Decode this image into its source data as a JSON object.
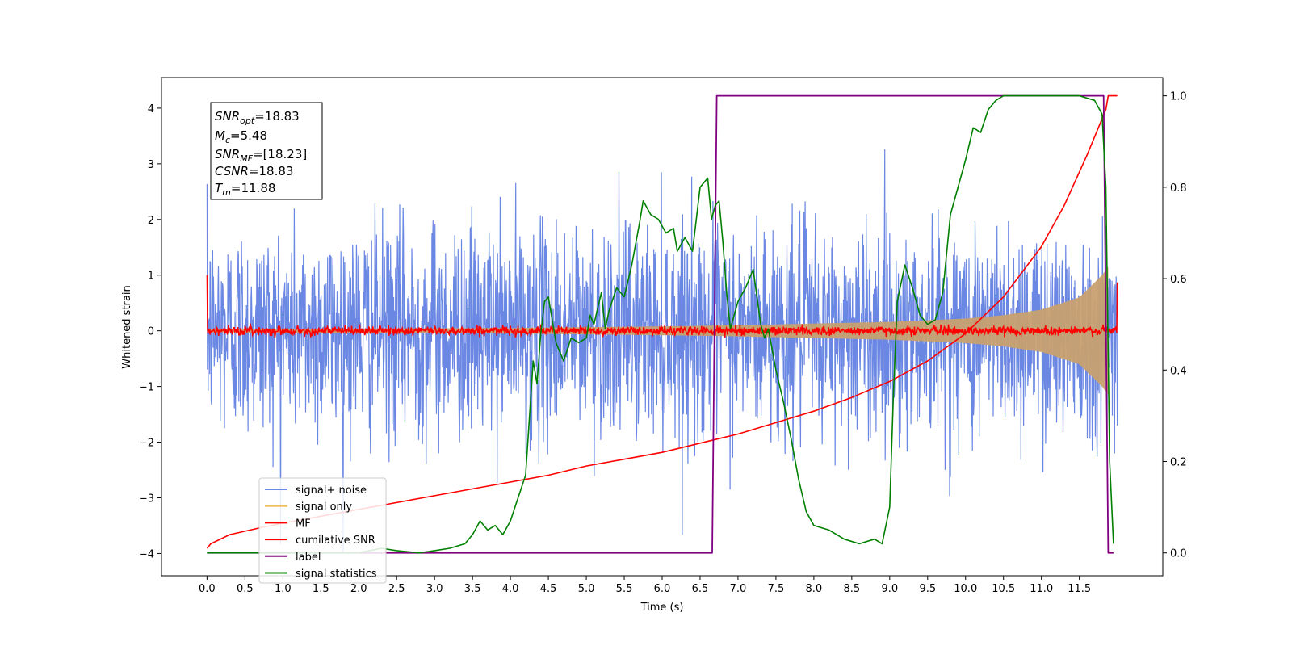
{
  "chart_data": {
    "type": "line",
    "title": "",
    "xlabel": "Time (s)",
    "ylabel": "Whitened strain",
    "xlim": [
      -0.6,
      12.6
    ],
    "ylim": [
      -4.4,
      4.55
    ],
    "ylim_right": [
      -0.05,
      1.04
    ],
    "x_ticks": [
      "0.0",
      "0.5",
      "1.0",
      "1.5",
      "2.0",
      "2.5",
      "3.0",
      "3.5",
      "4.0",
      "4.5",
      "5.0",
      "5.5",
      "6.0",
      "6.5",
      "7.0",
      "7.5",
      "8.0",
      "8.5",
      "9.0",
      "9.5",
      "10.0",
      "10.5",
      "11.0",
      "11.5"
    ],
    "y_ticks": [
      "4",
      "3",
      "2",
      "1",
      "0",
      "−1",
      "−2",
      "−3",
      "−4"
    ],
    "y_ticks_right": [
      "1.0",
      "0.8",
      "0.6",
      "0.4",
      "0.2",
      "0.0"
    ],
    "info_box": {
      "snr_opt": {
        "main": "SNR",
        "sub": "opt",
        "value": "=18.83"
      },
      "mc": {
        "main": "M",
        "sub": "c",
        "value": "=5.48"
      },
      "snr_mf": {
        "main": "SNR",
        "sub": "MF",
        "value": "=[18.23]"
      },
      "csnr": {
        "main": "CSNR",
        "value": "=18.83"
      },
      "tm": {
        "main": "T",
        "sub": "m",
        "value": "=11.88"
      }
    },
    "duration": 12.0,
    "merger_time": 11.88,
    "series": [
      {
        "name": "signal+ noise",
        "color": "#6a87e3",
        "axis": "left",
        "kind": "noise",
        "sigma": 0.95,
        "max_abs": 4.1
      },
      {
        "name": "signal only",
        "color": "#f0c060",
        "axis": "left",
        "kind": "chirp_envelope",
        "env": [
          [
            0,
            0.03
          ],
          [
            4,
            0.05
          ],
          [
            6,
            0.08
          ],
          [
            7,
            0.1
          ],
          [
            8,
            0.13
          ],
          [
            9,
            0.16
          ],
          [
            10,
            0.22
          ],
          [
            10.5,
            0.28
          ],
          [
            11,
            0.38
          ],
          [
            11.5,
            0.6
          ],
          [
            11.8,
            1.0
          ],
          [
            11.88,
            1.15
          ]
        ]
      },
      {
        "name": "MF",
        "color": "#ff0000",
        "axis": "left",
        "kind": "noise",
        "sigma": 0.04,
        "start_value": 1.0,
        "end_value": 0.87
      },
      {
        "name": "cumilative SNR",
        "color": "#ff0000",
        "axis": "right",
        "x": [
          0,
          0.05,
          0.3,
          0.7,
          1.0,
          1.5,
          2.0,
          2.5,
          3.0,
          3.5,
          4.0,
          4.5,
          5.0,
          5.5,
          6.0,
          6.5,
          7.0,
          7.5,
          8.0,
          8.5,
          9.0,
          9.5,
          10.0,
          10.5,
          11.0,
          11.3,
          11.6,
          11.75,
          11.85,
          11.88,
          12.0
        ],
        "y": [
          0.01,
          0.02,
          0.04,
          0.055,
          0.065,
          0.08,
          0.095,
          0.11,
          0.125,
          0.14,
          0.155,
          0.17,
          0.19,
          0.205,
          0.22,
          0.24,
          0.26,
          0.285,
          0.31,
          0.34,
          0.375,
          0.42,
          0.48,
          0.56,
          0.67,
          0.76,
          0.87,
          0.93,
          0.97,
          1.0,
          1.0
        ]
      },
      {
        "name": "label",
        "color": "#800080",
        "axis": "right",
        "x": [
          0,
          6.66,
          6.72,
          11.82,
          11.88,
          11.95
        ],
        "y": [
          0.0,
          0.0,
          1.0,
          1.0,
          0.0,
          0.0
        ]
      },
      {
        "name": "signal statistics",
        "color": "#008000",
        "axis": "right",
        "x": [
          0,
          0.5,
          1.0,
          1.5,
          2.0,
          2.3,
          2.5,
          2.8,
          3.0,
          3.2,
          3.4,
          3.5,
          3.6,
          3.7,
          3.8,
          3.9,
          4.0,
          4.1,
          4.2,
          4.3,
          4.35,
          4.4,
          4.45,
          4.5,
          4.6,
          4.7,
          4.8,
          4.9,
          5.0,
          5.05,
          5.1,
          5.2,
          5.25,
          5.3,
          5.4,
          5.5,
          5.6,
          5.7,
          5.75,
          5.85,
          5.95,
          6.05,
          6.15,
          6.2,
          6.3,
          6.4,
          6.5,
          6.6,
          6.65,
          6.7,
          6.75,
          6.8,
          6.85,
          6.9,
          7.0,
          7.1,
          7.2,
          7.3,
          7.35,
          7.4,
          7.5,
          7.6,
          7.7,
          7.8,
          7.9,
          8.0,
          8.2,
          8.4,
          8.6,
          8.8,
          8.9,
          9.0,
          9.05,
          9.1,
          9.2,
          9.3,
          9.4,
          9.5,
          9.6,
          9.7,
          9.8,
          9.9,
          10.0,
          10.1,
          10.2,
          10.3,
          10.4,
          10.5,
          10.7,
          10.9,
          11.1,
          11.3,
          11.5,
          11.7,
          11.8,
          11.85,
          11.9,
          11.95
        ],
        "y": [
          0.0,
          0.0,
          0.0,
          0.0,
          0.0,
          0.01,
          0.005,
          0.0,
          0.005,
          0.01,
          0.02,
          0.04,
          0.07,
          0.05,
          0.06,
          0.04,
          0.07,
          0.12,
          0.17,
          0.42,
          0.37,
          0.48,
          0.55,
          0.56,
          0.46,
          0.42,
          0.47,
          0.46,
          0.47,
          0.52,
          0.5,
          0.57,
          0.49,
          0.53,
          0.58,
          0.56,
          0.63,
          0.72,
          0.77,
          0.74,
          0.73,
          0.7,
          0.71,
          0.66,
          0.69,
          0.66,
          0.8,
          0.82,
          0.73,
          0.76,
          0.77,
          0.68,
          0.57,
          0.49,
          0.55,
          0.58,
          0.62,
          0.5,
          0.47,
          0.49,
          0.4,
          0.33,
          0.25,
          0.16,
          0.09,
          0.06,
          0.05,
          0.03,
          0.02,
          0.03,
          0.02,
          0.1,
          0.35,
          0.55,
          0.63,
          0.58,
          0.52,
          0.5,
          0.51,
          0.57,
          0.74,
          0.8,
          0.86,
          0.93,
          0.92,
          0.97,
          0.99,
          1.0,
          1.0,
          1.0,
          1.0,
          1.0,
          1.0,
          0.99,
          0.96,
          0.8,
          0.2,
          0.02
        ]
      }
    ],
    "legend_position": "lower-left",
    "grid": false
  }
}
